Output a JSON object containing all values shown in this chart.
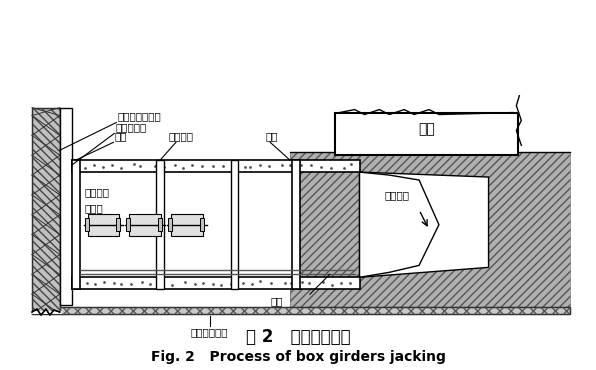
{
  "title_cn": "图 2   箱梁顶进示意",
  "title_en": "Fig. 2   Process of box girders jacking",
  "labels": {
    "deep_pile": "深层水泥搅拌桩",
    "back_wall": "方木后背墙",
    "li_tie": "立铁",
    "heng_tie": "横向顶铁",
    "box_beam": "箱梁",
    "zong_tie": "纵向顶铁",
    "qian_ding": "千斤顶",
    "guide_rail": "导轨",
    "manual_dig": "人工掘土",
    "gravel_base": "碎石木枕基础",
    "pavilion": "阁体"
  },
  "bg_color": "#ffffff"
}
